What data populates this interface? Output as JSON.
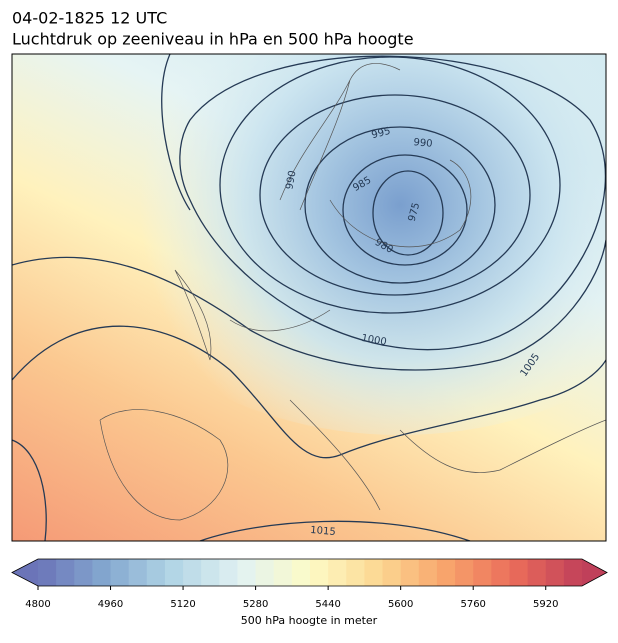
{
  "header": {
    "title": "04-02-1825 12 UTC",
    "subtitle": "Luchtdruk op zeeniveau in hPa en 500 hPa hoogte"
  },
  "map": {
    "contour_labels": [
      995,
      990,
      985,
      980,
      975,
      990,
      1000,
      1005,
      1015
    ]
  },
  "colorbar": {
    "label": "500 hPa hoogte in meter",
    "lim": [
      4800,
      6000
    ],
    "ticks": [
      4800,
      4960,
      5120,
      5280,
      5440,
      5600,
      5760,
      5920
    ]
  }
}
